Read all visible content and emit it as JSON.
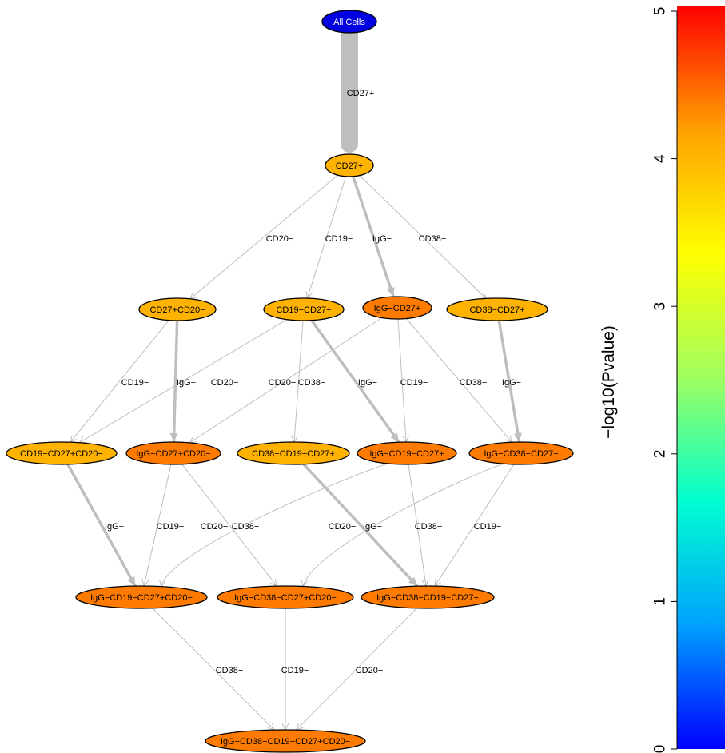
{
  "colors": {
    "edge": "#bebebe",
    "node_root": "#0000e0",
    "node_amber": "#ffb300",
    "node_orange": "#ff7b00"
  },
  "nodes": [
    {
      "id": "n0",
      "label": "All Cells",
      "color": "node_root"
    },
    {
      "id": "n1",
      "label": "CD27+",
      "color": "node_amber"
    },
    {
      "id": "n2",
      "label": "CD27+CD20−",
      "color": "node_amber"
    },
    {
      "id": "n3",
      "label": "CD19−CD27+",
      "color": "node_amber"
    },
    {
      "id": "n4",
      "label": "IgG−CD27+",
      "color": "node_orange"
    },
    {
      "id": "n5",
      "label": "CD38−CD27+",
      "color": "node_amber"
    },
    {
      "id": "n6",
      "label": "CD19−CD27+CD20−",
      "color": "node_amber"
    },
    {
      "id": "n7",
      "label": "IgG−CD27+CD20−",
      "color": "node_orange"
    },
    {
      "id": "n8",
      "label": "CD38−CD19−CD27+",
      "color": "node_amber"
    },
    {
      "id": "n9",
      "label": "IgG−CD19−CD27+",
      "color": "node_orange"
    },
    {
      "id": "n10",
      "label": "IgG−CD38−CD27+",
      "color": "node_orange"
    },
    {
      "id": "n11",
      "label": "IgG−CD19−CD27+CD20−",
      "color": "node_orange"
    },
    {
      "id": "n12",
      "label": "IgG−CD38−CD27+CD20−",
      "color": "node_orange"
    },
    {
      "id": "n13",
      "label": "IgG−CD38−CD19−CD27+",
      "color": "node_orange"
    },
    {
      "id": "n14",
      "label": "IgG−CD38−CD19−CD27+CD20−",
      "color": "node_orange"
    }
  ],
  "edges": [
    {
      "from": "n0",
      "to": "n1",
      "label": "CD27+",
      "weight": "heavy"
    },
    {
      "from": "n1",
      "to": "n2",
      "label": "CD20−",
      "weight": "thin"
    },
    {
      "from": "n1",
      "to": "n3",
      "label": "CD19−",
      "weight": "thin"
    },
    {
      "from": "n1",
      "to": "n4",
      "label": "IgG−",
      "weight": "medium"
    },
    {
      "from": "n1",
      "to": "n5",
      "label": "CD38−",
      "weight": "thin"
    },
    {
      "from": "n2",
      "to": "n6",
      "label": "CD19−",
      "weight": "thin"
    },
    {
      "from": "n2",
      "to": "n7",
      "label": "IgG−",
      "weight": "medium"
    },
    {
      "from": "n3",
      "to": "n6",
      "label": "CD20−",
      "weight": "thin"
    },
    {
      "from": "n4",
      "to": "n7",
      "label": "CD20−",
      "weight": "thin"
    },
    {
      "from": "n3",
      "to": "n8",
      "label": "CD38−",
      "weight": "thin"
    },
    {
      "from": "n3",
      "to": "n9",
      "label": "IgG−",
      "weight": "medium"
    },
    {
      "from": "n4",
      "to": "n9",
      "label": "CD19−",
      "weight": "thin"
    },
    {
      "from": "n4",
      "to": "n10",
      "label": "CD38−",
      "weight": "thin"
    },
    {
      "from": "n5",
      "to": "n10",
      "label": "IgG−",
      "weight": "medium"
    },
    {
      "from": "n6",
      "to": "n11",
      "label": "IgG−",
      "weight": "medium"
    },
    {
      "from": "n7",
      "to": "n11",
      "label": "CD19−",
      "weight": "thin"
    },
    {
      "from": "n9",
      "to": "n11",
      "label": "CD20−",
      "weight": "thin"
    },
    {
      "from": "n7",
      "to": "n12",
      "label": "CD38−",
      "weight": "thin"
    },
    {
      "from": "n10",
      "to": "n12",
      "label": "CD20−",
      "weight": "thin"
    },
    {
      "from": "n8",
      "to": "n13",
      "label": "IgG−",
      "weight": "medium"
    },
    {
      "from": "n9",
      "to": "n13",
      "label": "CD38−",
      "weight": "thin"
    },
    {
      "from": "n10",
      "to": "n13",
      "label": "CD19−",
      "weight": "thin"
    },
    {
      "from": "n11",
      "to": "n14",
      "label": "CD38−",
      "weight": "thin"
    },
    {
      "from": "n12",
      "to": "n14",
      "label": "CD19−",
      "weight": "thin"
    },
    {
      "from": "n13",
      "to": "n14",
      "label": "CD20−",
      "weight": "thin"
    }
  ],
  "colorbar": {
    "title": "−log10(Pvalue)",
    "ticks": [
      "0",
      "1",
      "2",
      "3",
      "4",
      "5"
    ],
    "min": 0,
    "max": 5,
    "palette": [
      "#0000ff",
      "#00a0ff",
      "#00ffd0",
      "#a0ff60",
      "#ffff00",
      "#ffa000",
      "#ff0000"
    ]
  }
}
